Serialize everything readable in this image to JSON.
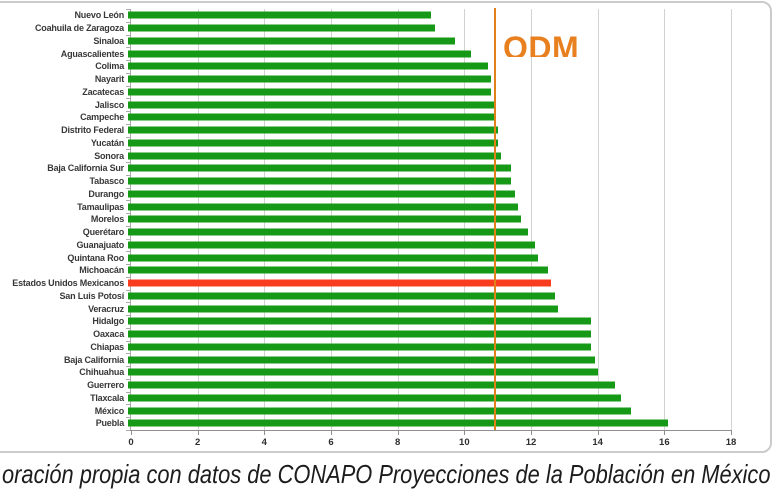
{
  "chart_data": {
    "type": "bar",
    "orientation": "horizontal",
    "title": "",
    "xlabel": "",
    "ylabel": "",
    "xlim": [
      0,
      18
    ],
    "x_ticks": [
      0,
      2,
      4,
      6,
      8,
      10,
      12,
      14,
      16,
      18
    ],
    "grid": "vertical",
    "legend": "none",
    "categories": [
      "Nuevo León",
      "Coahuila de Zaragoza",
      "Sinaloa",
      "Aguascalientes",
      "Colima",
      "Nayarit",
      "Zacatecas",
      "Jalisco",
      "Campeche",
      "Distrito Federal",
      "Yucatán",
      "Sonora",
      "Baja California Sur",
      "Tabasco",
      "Durango",
      "Tamaulipas",
      "Morelos",
      "Querétaro",
      "Guanajuato",
      "Quintana Roo",
      "Michoacán",
      "Estados Unidos Mexicanos",
      "San Luis Potosí",
      "Veracruz",
      "Hidalgo",
      "Oaxaca",
      "Chiapas",
      "Baja California",
      "Chihuahua",
      "Guerrero",
      "Tlaxcala",
      "México",
      "Puebla"
    ],
    "values": [
      9.1,
      9.2,
      9.8,
      10.3,
      10.8,
      10.9,
      10.9,
      11.0,
      11.0,
      11.1,
      11.1,
      11.2,
      11.5,
      11.5,
      11.6,
      11.7,
      11.8,
      12.0,
      12.2,
      12.3,
      12.6,
      12.7,
      12.8,
      12.9,
      13.9,
      13.9,
      13.9,
      14.0,
      14.1,
      14.6,
      14.8,
      15.1,
      16.2
    ],
    "bar_color": "#169916",
    "highlight_category": "Estados Unidos Mexicanos",
    "highlight_color": "#fa3c1e",
    "reference_line": {
      "label": "ODM",
      "value": 10.9,
      "color": "#e0811c"
    }
  },
  "caption": {
    "text": "oración propia con datos de CONAPO Proyecciones de la Población en México"
  },
  "colors": {
    "gridline": "#d2d2d2",
    "axis": "#8f8f8f",
    "panel_border": "#c9cbcc",
    "label_text": "#383838"
  }
}
